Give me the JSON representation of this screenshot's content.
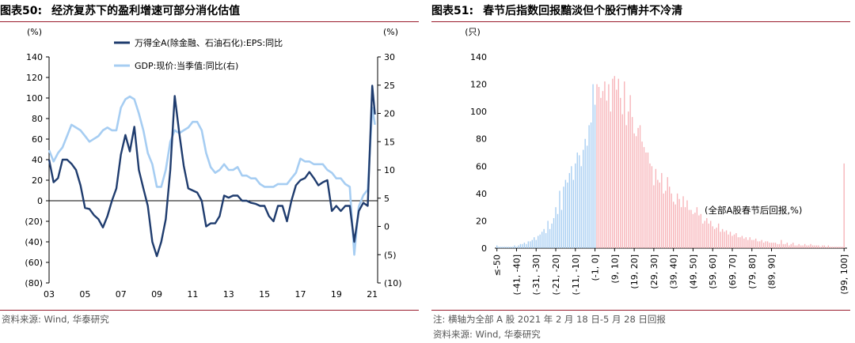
{
  "left": {
    "figure_number": "图表50:",
    "title": "经济复苏下的盈利增速可部分消化估值",
    "source": "资料来源: Wind, 华泰研究"
  },
  "right": {
    "figure_number": "图表51:",
    "title": "春节后指数回报黯淡但个股行情并不冷清",
    "note": "注: 横轴为全部 A 股 2021 年 2 月 18 日-5 月 28 日回报",
    "source": "资料来源: Wind, 华泰研究"
  },
  "chart_data": [
    {
      "type": "line",
      "y_unit_left": "(%)",
      "y_unit_right": "(%)",
      "ylim_left": [
        -80,
        140
      ],
      "ylim_right": [
        -10,
        30
      ],
      "yticks_left": [
        "140",
        "120",
        "100",
        "80",
        "60",
        "40",
        "20",
        "0",
        "(20)",
        "(40)",
        "(60)",
        "(80)"
      ],
      "yticks_right": [
        "30",
        "25",
        "20",
        "15",
        "10",
        "5",
        "0",
        "(5)",
        "(10)"
      ],
      "xticks": [
        "03",
        "05",
        "07",
        "09",
        "11",
        "13",
        "15",
        "17",
        "19",
        "21"
      ],
      "xlim": [
        2003,
        2021.3
      ],
      "legend_position": "top-center",
      "series": [
        {
          "name": "万得全A(除金融、石油石化):EPS:同比",
          "axis": "left",
          "color": "#1f3c6e",
          "x": [
            2003.0,
            2003.25,
            2003.5,
            2003.75,
            2004.0,
            2004.25,
            2004.5,
            2004.75,
            2005.0,
            2005.25,
            2005.5,
            2005.75,
            2006.0,
            2006.25,
            2006.5,
            2006.75,
            2007.0,
            2007.25,
            2007.5,
            2007.75,
            2008.0,
            2008.25,
            2008.5,
            2008.75,
            2009.0,
            2009.25,
            2009.5,
            2009.75,
            2010.0,
            2010.25,
            2010.5,
            2010.75,
            2011.0,
            2011.25,
            2011.5,
            2011.75,
            2012.0,
            2012.25,
            2012.5,
            2012.75,
            2013.0,
            2013.25,
            2013.5,
            2013.75,
            2014.0,
            2014.25,
            2014.5,
            2014.75,
            2015.0,
            2015.25,
            2015.5,
            2015.75,
            2016.0,
            2016.25,
            2016.5,
            2016.75,
            2017.0,
            2017.25,
            2017.5,
            2017.75,
            2018.0,
            2018.25,
            2018.5,
            2018.75,
            2019.0,
            2019.25,
            2019.5,
            2019.75,
            2020.0,
            2020.25,
            2020.5,
            2020.75,
            2021.0,
            2021.15
          ],
          "values": [
            40,
            18,
            22,
            40,
            40,
            36,
            30,
            15,
            -7,
            -8,
            -14,
            -18,
            -26,
            -15,
            0,
            12,
            45,
            64,
            48,
            72,
            30,
            12,
            -5,
            -40,
            -54,
            -40,
            -18,
            30,
            102,
            66,
            34,
            12,
            10,
            8,
            0,
            -25,
            -22,
            -22,
            -15,
            5,
            3,
            5,
            5,
            0,
            0,
            -2,
            -3,
            -5,
            -5,
            -15,
            -20,
            -5,
            -5,
            -20,
            0,
            15,
            20,
            22,
            28,
            22,
            15,
            18,
            20,
            -10,
            -5,
            -10,
            -5,
            -5,
            -40,
            -10,
            -2,
            -5,
            112,
            84
          ]
        },
        {
          "name": "GDP:现价:当季值:同比(右)",
          "axis": "right",
          "color": "#a6cdf2",
          "x": [
            2003.0,
            2003.25,
            2003.5,
            2003.75,
            2004.0,
            2004.25,
            2004.5,
            2004.75,
            2005.0,
            2005.25,
            2005.5,
            2005.75,
            2006.0,
            2006.25,
            2006.5,
            2006.75,
            2007.0,
            2007.25,
            2007.5,
            2007.75,
            2008.0,
            2008.25,
            2008.5,
            2008.75,
            2009.0,
            2009.25,
            2009.5,
            2009.75,
            2010.0,
            2010.25,
            2010.5,
            2010.75,
            2011.0,
            2011.25,
            2011.5,
            2011.75,
            2012.0,
            2012.25,
            2012.5,
            2012.75,
            2013.0,
            2013.25,
            2013.5,
            2013.75,
            2014.0,
            2014.25,
            2014.5,
            2014.75,
            2015.0,
            2015.25,
            2015.5,
            2015.75,
            2016.0,
            2016.25,
            2016.5,
            2016.75,
            2017.0,
            2017.25,
            2017.5,
            2017.75,
            2018.0,
            2018.25,
            2018.5,
            2018.75,
            2019.0,
            2019.25,
            2019.5,
            2019.75,
            2020.0,
            2020.25,
            2020.5,
            2020.75,
            2021.0,
            2021.15
          ],
          "values": [
            13.5,
            11.5,
            13,
            14,
            16,
            18,
            17.5,
            17,
            16,
            15,
            15.5,
            16,
            17,
            17.5,
            17,
            17,
            21,
            22.5,
            23,
            22.5,
            20,
            17,
            13,
            11,
            7,
            7,
            10,
            15,
            17,
            16.5,
            17,
            17.5,
            18.5,
            18.5,
            17,
            13,
            10.5,
            9.5,
            10,
            11,
            10,
            10,
            10.5,
            9,
            9,
            8.5,
            8.5,
            7.5,
            7,
            7,
            7,
            7.5,
            7.5,
            7.5,
            8.5,
            9.5,
            12,
            11.5,
            11.5,
            11,
            11,
            11,
            10,
            9.5,
            8.5,
            8.5,
            7.5,
            7,
            -5,
            3.5,
            5.5,
            6.5,
            21,
            18
          ]
        }
      ]
    },
    {
      "type": "bar",
      "y_unit": "(只)",
      "ylim": [
        0,
        140
      ],
      "yticks": [
        0,
        20,
        40,
        60,
        80,
        100,
        120,
        140
      ],
      "xtick_labels": [
        "≤-50",
        "(-41, -40]",
        "(-31, -30]",
        "(-21, -20]",
        "(-11, -10]",
        "(-1, 0]",
        "(9, 10]",
        "(19, 20]",
        "(29, 30]",
        "(39, 40]",
        "(49, 50]",
        "(59, 60]",
        "(69, 70]",
        "(79, 80]",
        "(89, 90]",
        "(99, 100]"
      ],
      "annotation": "(全部A股春节后回报,%)",
      "colors": {
        "negative": "#a6cdf2",
        "positive": "#f7b3b8"
      },
      "negative_values": [
        2,
        1,
        1,
        1,
        1,
        1,
        1,
        1,
        1,
        2,
        1,
        2,
        3,
        3,
        4,
        3,
        5,
        5,
        6,
        8,
        6,
        9,
        10,
        12,
        14,
        11,
        20,
        14,
        18,
        22,
        30,
        25,
        42,
        28,
        45,
        50,
        48,
        55,
        60,
        50,
        62,
        70,
        68,
        60,
        72,
        80,
        75,
        90,
        92,
        120,
        105
      ],
      "positive_values": [
        120,
        118,
        110,
        115,
        122,
        108,
        120,
        100,
        124,
        126,
        116,
        124,
        110,
        98,
        122,
        90,
        100,
        112,
        96,
        84,
        82,
        88,
        90,
        78,
        74,
        70,
        70,
        62,
        60,
        46,
        58,
        50,
        48,
        55,
        40,
        42,
        52,
        45,
        40,
        34,
        32,
        40,
        36,
        30,
        38,
        30,
        35,
        28,
        28,
        25,
        26,
        30,
        24,
        25,
        18,
        20,
        22,
        18,
        20,
        16,
        14,
        15,
        18,
        12,
        14,
        12,
        13,
        10,
        12,
        9,
        10,
        11,
        8,
        8,
        9,
        7,
        8,
        6,
        8,
        6,
        6,
        7,
        5,
        5,
        6,
        4,
        5,
        5,
        4,
        4,
        4,
        4,
        3,
        3,
        6,
        3,
        3,
        4,
        2,
        3,
        4,
        2,
        2,
        3,
        2,
        2,
        3,
        2,
        2,
        3,
        2,
        2,
        2,
        2,
        1,
        2,
        2,
        1,
        2,
        1,
        1,
        1,
        1,
        1,
        1,
        1,
        62
      ]
    }
  ]
}
